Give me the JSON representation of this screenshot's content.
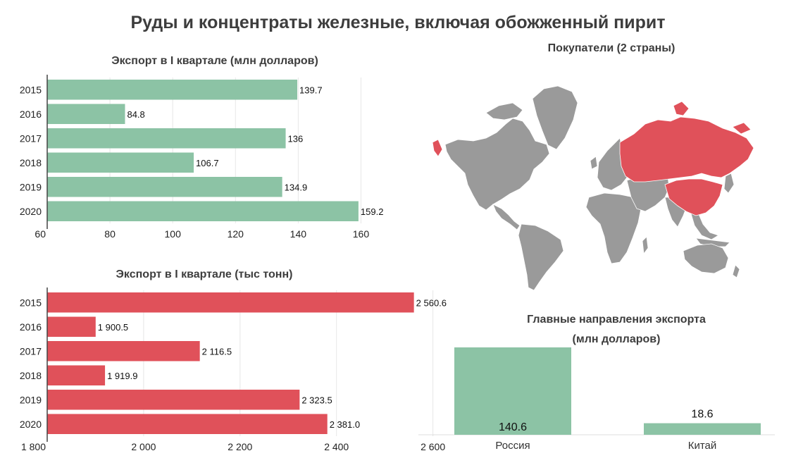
{
  "page": {
    "title": "Руды и концентраты железные, включая обожженный пирит"
  },
  "map": {
    "title": "Покупатели (2 страны)",
    "highlight_color": "#e0515a",
    "base_color": "#9a9a9a",
    "highlighted_countries": [
      "Россия",
      "Китай"
    ]
  },
  "colors": {
    "green": "#8cc3a5",
    "red": "#e0515a",
    "grid": "#e6e6e6",
    "axis": "#444444"
  },
  "chart_data": [
    {
      "id": "usd",
      "type": "bar",
      "orientation": "horizontal",
      "title": "Экспорт в I квартале (млн долларов)",
      "categories": [
        "2015",
        "2016",
        "2017",
        "2018",
        "2019",
        "2020"
      ],
      "values": [
        139.7,
        84.8,
        136,
        106.7,
        134.9,
        159.2
      ],
      "labels": [
        "139.7",
        "84.8",
        "136",
        "106.7",
        "134.9",
        "159.2"
      ],
      "xlim": [
        60,
        170
      ],
      "ticks": [
        60,
        80,
        100,
        120,
        140,
        160
      ],
      "tick_labels": [
        "60",
        "80",
        "100",
        "120",
        "140",
        "160"
      ],
      "color": "#8cc3a5",
      "grid": true
    },
    {
      "id": "tons",
      "type": "bar",
      "orientation": "horizontal",
      "title": "Экспорт в I квартале (тыс тонн)",
      "categories": [
        "2015",
        "2016",
        "2017",
        "2018",
        "2019",
        "2020"
      ],
      "values": [
        2560.6,
        1900.5,
        2116.5,
        1919.9,
        2323.5,
        2381.0
      ],
      "labels": [
        "2 560.6",
        "1 900.5",
        "2 116.5",
        "1 919.9",
        "2 323.5",
        "2 381.0"
      ],
      "xlim": [
        1800,
        2640
      ],
      "ticks": [
        1800,
        2000,
        2200,
        2400,
        2600
      ],
      "tick_labels": [
        "1 800",
        "2 000",
        "2 200",
        "2 400",
        "2 600"
      ],
      "color": "#e0515a",
      "grid": true
    },
    {
      "id": "destinations",
      "type": "bar",
      "orientation": "vertical",
      "title_line1": "Главные направления экспорта",
      "title_line2": "(млн долларов)",
      "categories": [
        "Россия",
        "Китай"
      ],
      "values": [
        140.6,
        18.6
      ],
      "labels": [
        "140.6",
        "18.6"
      ],
      "ylim": [
        0,
        140.6
      ],
      "color": "#8cc3a5"
    }
  ]
}
